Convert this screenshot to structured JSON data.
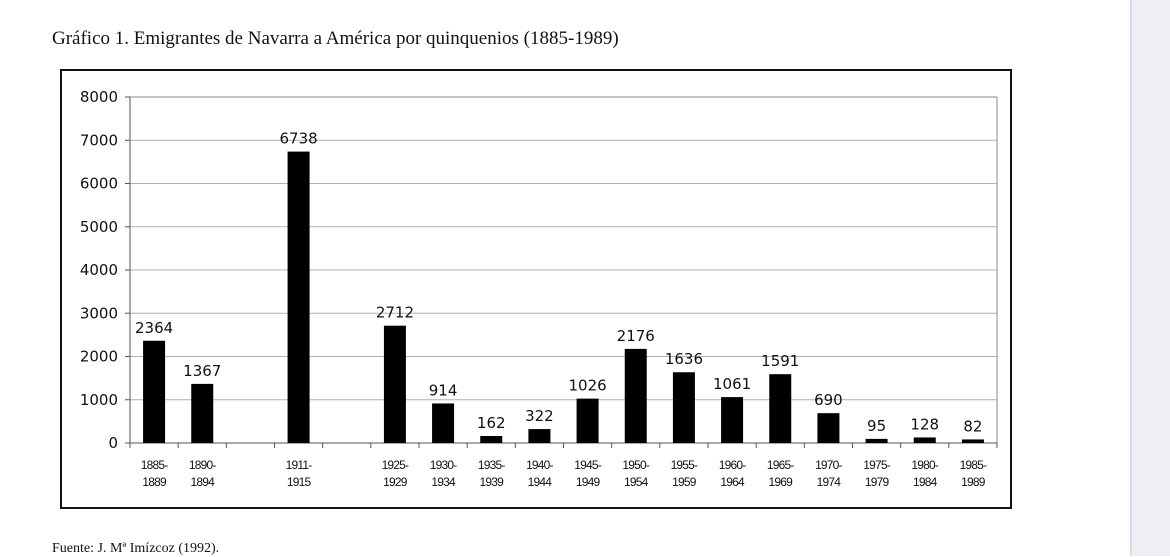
{
  "title": "Gráfico 1. Emigrantes de Navarra a América por quinquenios (1885-1989)",
  "source": "Fuente: J. Mª Imízcoz (1992).",
  "chart_data": {
    "type": "bar",
    "title": "Gráfico 1. Emigrantes de Navarra a América por quinquenios (1885-1989)",
    "xlabel": "",
    "ylabel": "",
    "ylim": [
      0,
      8000
    ],
    "yticks": [
      0,
      1000,
      2000,
      3000,
      4000,
      5000,
      6000,
      7000,
      8000
    ],
    "grid": true,
    "bar_color": "#000000",
    "categories": [
      [
        "1885-",
        "1889"
      ],
      [
        "1890-",
        "1894"
      ],
      [
        "",
        ""
      ],
      [
        "1911-",
        "1915"
      ],
      [
        "",
        ""
      ],
      [
        "1925-",
        "1929"
      ],
      [
        "1930-",
        "1934"
      ],
      [
        "1935-",
        "1939"
      ],
      [
        "1940-",
        "1944"
      ],
      [
        "1945-",
        "1949"
      ],
      [
        "1950-",
        "1954"
      ],
      [
        "1955-",
        "1959"
      ],
      [
        "1960-",
        "1964"
      ],
      [
        "1965-",
        "1969"
      ],
      [
        "1970-",
        "1974"
      ],
      [
        "1975-",
        "1979"
      ],
      [
        "1980-",
        "1984"
      ],
      [
        "1985-",
        "1989"
      ]
    ],
    "values": [
      2364,
      1367,
      null,
      6738,
      null,
      2712,
      914,
      162,
      322,
      1026,
      2176,
      1636,
      1061,
      1591,
      690,
      95,
      128,
      82
    ]
  }
}
